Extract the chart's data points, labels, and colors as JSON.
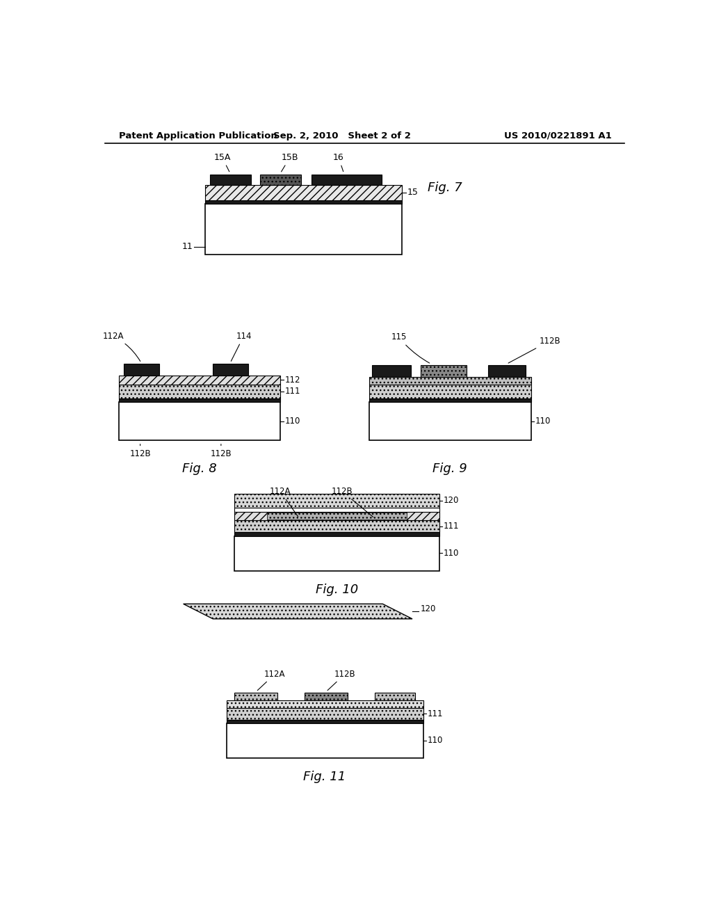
{
  "bg_color": "#ffffff",
  "header_left": "Patent Application Publication",
  "header_mid": "Sep. 2, 2010   Sheet 2 of 2",
  "header_right": "US 2010/0221891 A1"
}
